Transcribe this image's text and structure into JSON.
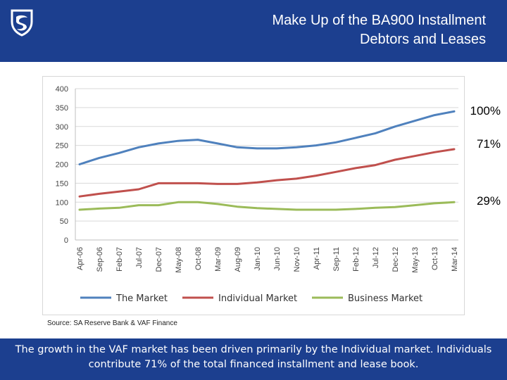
{
  "title": "Make Up of the BA900 Installment Debtors and Leases",
  "title_line1": "Make Up of the BA900 Installment",
  "title_line2": "Debtors and Leases",
  "source": "Source: SA Reserve Bank & VAF Finance",
  "footer_text": "The growth in the VAF market has been driven primarily by the Individual market. Individuals contribute 71% of the total financed installment and lease book.",
  "percent_labels": {
    "total": "100%",
    "individual": "71%",
    "business": "29%"
  },
  "colors": {
    "brand_blue": "#1c3f8f",
    "market": "#4f81bd",
    "individual": "#c0504d",
    "business": "#9bbb59"
  },
  "chart_data": {
    "type": "line",
    "x_labels": [
      "Apr-06",
      "Sep-06",
      "Feb-07",
      "Jul-07",
      "Dec-07",
      "May-08",
      "Oct-08",
      "Mar-09",
      "Aug-09",
      "Jan-10",
      "Jun-10",
      "Nov-10",
      "Apr-11",
      "Sep-11",
      "Feb-12",
      "Jul-12",
      "Dec-12",
      "May-13",
      "Oct-13",
      "Mar-14"
    ],
    "ylim": [
      0,
      400
    ],
    "yticks": [
      0,
      50,
      100,
      150,
      200,
      250,
      300,
      350,
      400
    ],
    "grid": true,
    "legend_position": "bottom",
    "series": [
      {
        "name": "The Market",
        "color": "#4f81bd",
        "values": [
          200,
          217,
          230,
          245,
          255,
          262,
          265,
          255,
          245,
          242,
          242,
          245,
          250,
          258,
          270,
          282,
          300,
          315,
          330,
          340
        ]
      },
      {
        "name": "Individual Market",
        "color": "#c0504d",
        "values": [
          115,
          122,
          128,
          134,
          150,
          150,
          150,
          148,
          148,
          152,
          158,
          162,
          170,
          180,
          190,
          198,
          212,
          222,
          232,
          240
        ]
      },
      {
        "name": "Business Market",
        "color": "#9bbb59",
        "values": [
          80,
          83,
          85,
          92,
          92,
          100,
          100,
          95,
          88,
          84,
          82,
          80,
          80,
          80,
          82,
          85,
          87,
          92,
          97,
          100
        ]
      }
    ]
  }
}
